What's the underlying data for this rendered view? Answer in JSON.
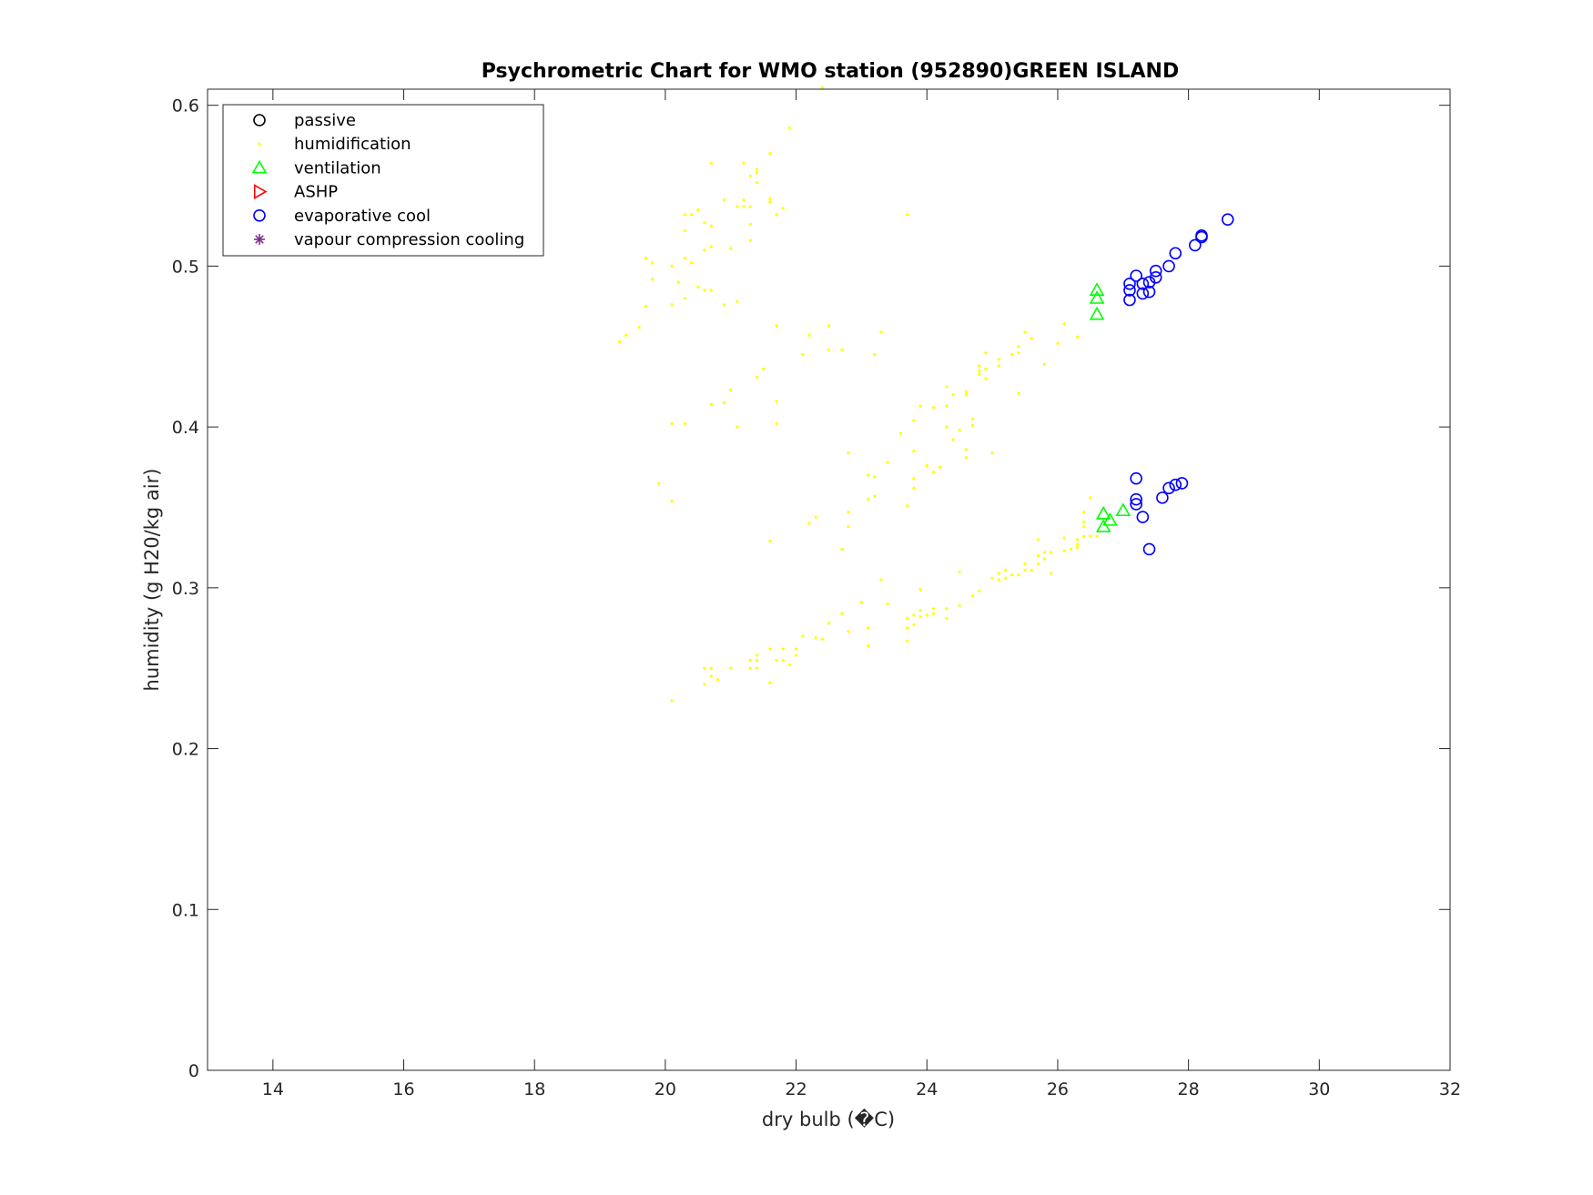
{
  "chart_data": {
    "type": "scatter",
    "title": "Psychrometric Chart for WMO station (952890)GREEN ISLAND",
    "xlabel": "dry bulb (�C)",
    "ylabel": "humidity (g H20/kg air)",
    "xlim": [
      13,
      32
    ],
    "ylim": [
      0,
      0.61
    ],
    "xticks": [
      14,
      16,
      18,
      20,
      22,
      24,
      26,
      28,
      30,
      32
    ],
    "yticks": [
      0,
      0.1,
      0.2,
      0.3,
      0.4,
      0.5,
      0.6
    ],
    "xtick_labels": [
      "14",
      "16",
      "18",
      "20",
      "22",
      "24",
      "26",
      "28",
      "30",
      "32"
    ],
    "ytick_labels": [
      "0",
      "0.1",
      "0.2",
      "0.3",
      "0.4",
      "0.5",
      "0.6"
    ],
    "grid": false,
    "legend_position": "top-left",
    "series": [
      {
        "name": "passive",
        "marker": "circle",
        "color": "#000000",
        "points": []
      },
      {
        "name": "humidification",
        "marker": "dot",
        "color": "#ffff00",
        "points": [
          [
            19.3,
            0.453
          ],
          [
            19.4,
            0.457
          ],
          [
            19.6,
            0.462
          ],
          [
            19.7,
            0.475
          ],
          [
            19.7,
            0.505
          ],
          [
            19.8,
            0.502
          ],
          [
            19.8,
            0.492
          ],
          [
            19.9,
            0.365
          ],
          [
            20.1,
            0.23
          ],
          [
            20.1,
            0.354
          ],
          [
            20.1,
            0.402
          ],
          [
            20.1,
            0.476
          ],
          [
            20.1,
            0.5
          ],
          [
            20.2,
            0.49
          ],
          [
            20.3,
            0.402
          ],
          [
            20.3,
            0.48
          ],
          [
            20.3,
            0.505
          ],
          [
            20.3,
            0.522
          ],
          [
            20.3,
            0.532
          ],
          [
            20.4,
            0.502
          ],
          [
            20.4,
            0.532
          ],
          [
            20.5,
            0.535
          ],
          [
            20.5,
            0.487
          ],
          [
            20.6,
            0.24
          ],
          [
            20.6,
            0.25
          ],
          [
            20.6,
            0.485
          ],
          [
            20.6,
            0.51
          ],
          [
            20.6,
            0.527
          ],
          [
            20.7,
            0.245
          ],
          [
            20.7,
            0.25
          ],
          [
            20.7,
            0.414
          ],
          [
            20.7,
            0.485
          ],
          [
            20.7,
            0.512
          ],
          [
            20.7,
            0.525
          ],
          [
            20.7,
            0.564
          ],
          [
            20.8,
            0.243
          ],
          [
            20.9,
            0.415
          ],
          [
            20.9,
            0.476
          ],
          [
            20.9,
            0.541
          ],
          [
            21.0,
            0.25
          ],
          [
            21.0,
            0.423
          ],
          [
            21.0,
            0.511
          ],
          [
            21.1,
            0.4
          ],
          [
            21.1,
            0.478
          ],
          [
            21.1,
            0.537
          ],
          [
            21.2,
            0.537
          ],
          [
            21.2,
            0.541
          ],
          [
            21.2,
            0.564
          ],
          [
            21.3,
            0.25
          ],
          [
            21.3,
            0.255
          ],
          [
            21.3,
            0.516
          ],
          [
            21.3,
            0.526
          ],
          [
            21.3,
            0.537
          ],
          [
            21.3,
            0.556
          ],
          [
            21.4,
            0.25
          ],
          [
            21.4,
            0.255
          ],
          [
            21.4,
            0.258
          ],
          [
            21.4,
            0.431
          ],
          [
            21.4,
            0.552
          ],
          [
            21.4,
            0.558
          ],
          [
            21.4,
            0.56
          ],
          [
            21.5,
            0.436
          ],
          [
            21.6,
            0.241
          ],
          [
            21.6,
            0.262
          ],
          [
            21.6,
            0.329
          ],
          [
            21.6,
            0.54
          ],
          [
            21.6,
            0.542
          ],
          [
            21.6,
            0.57
          ],
          [
            21.7,
            0.255
          ],
          [
            21.7,
            0.402
          ],
          [
            21.7,
            0.416
          ],
          [
            21.7,
            0.463
          ],
          [
            21.7,
            0.532
          ],
          [
            21.8,
            0.255
          ],
          [
            21.8,
            0.262
          ],
          [
            21.8,
            0.536
          ],
          [
            21.9,
            0.252
          ],
          [
            21.9,
            0.586
          ],
          [
            22.0,
            0.258
          ],
          [
            22.0,
            0.262
          ],
          [
            22.1,
            0.27
          ],
          [
            22.1,
            0.445
          ],
          [
            22.2,
            0.34
          ],
          [
            22.2,
            0.457
          ],
          [
            22.3,
            0.269
          ],
          [
            22.3,
            0.344
          ],
          [
            22.4,
            0.268
          ],
          [
            22.4,
            0.611
          ],
          [
            22.5,
            0.278
          ],
          [
            22.5,
            0.448
          ],
          [
            22.5,
            0.463
          ],
          [
            22.7,
            0.284
          ],
          [
            22.7,
            0.324
          ],
          [
            22.7,
            0.448
          ],
          [
            22.8,
            0.273
          ],
          [
            22.8,
            0.338
          ],
          [
            22.8,
            0.347
          ],
          [
            22.8,
            0.384
          ],
          [
            23.0,
            0.291
          ],
          [
            23.1,
            0.264
          ],
          [
            23.1,
            0.275
          ],
          [
            23.1,
            0.355
          ],
          [
            23.1,
            0.37
          ],
          [
            23.2,
            0.357
          ],
          [
            23.2,
            0.369
          ],
          [
            23.2,
            0.445
          ],
          [
            23.3,
            0.305
          ],
          [
            23.3,
            0.459
          ],
          [
            23.4,
            0.29
          ],
          [
            23.4,
            0.378
          ],
          [
            23.6,
            0.396
          ],
          [
            23.7,
            0.267
          ],
          [
            23.7,
            0.275
          ],
          [
            23.7,
            0.281
          ],
          [
            23.7,
            0.351
          ],
          [
            23.7,
            0.532
          ],
          [
            23.8,
            0.277
          ],
          [
            23.8,
            0.283
          ],
          [
            23.8,
            0.362
          ],
          [
            23.8,
            0.368
          ],
          [
            23.8,
            0.385
          ],
          [
            23.8,
            0.404
          ],
          [
            23.9,
            0.282
          ],
          [
            23.9,
            0.286
          ],
          [
            23.9,
            0.299
          ],
          [
            23.9,
            0.413
          ],
          [
            24.0,
            0.283
          ],
          [
            24.0,
            0.376
          ],
          [
            24.1,
            0.284
          ],
          [
            24.1,
            0.287
          ],
          [
            24.1,
            0.372
          ],
          [
            24.1,
            0.412
          ],
          [
            24.2,
            0.375
          ],
          [
            24.3,
            0.281
          ],
          [
            24.3,
            0.287
          ],
          [
            24.3,
            0.4
          ],
          [
            24.3,
            0.413
          ],
          [
            24.3,
            0.425
          ],
          [
            24.4,
            0.392
          ],
          [
            24.4,
            0.42
          ],
          [
            24.5,
            0.289
          ],
          [
            24.5,
            0.31
          ],
          [
            24.5,
            0.398
          ],
          [
            24.6,
            0.381
          ],
          [
            24.6,
            0.386
          ],
          [
            24.6,
            0.42
          ],
          [
            24.6,
            0.422
          ],
          [
            24.7,
            0.295
          ],
          [
            24.7,
            0.401
          ],
          [
            24.7,
            0.405
          ],
          [
            24.8,
            0.298
          ],
          [
            24.8,
            0.433
          ],
          [
            24.8,
            0.435
          ],
          [
            24.8,
            0.438
          ],
          [
            24.9,
            0.43
          ],
          [
            24.9,
            0.436
          ],
          [
            24.9,
            0.446
          ],
          [
            25.0,
            0.306
          ],
          [
            25.0,
            0.384
          ],
          [
            25.1,
            0.305
          ],
          [
            25.1,
            0.309
          ],
          [
            25.1,
            0.438
          ],
          [
            25.1,
            0.442
          ],
          [
            25.2,
            0.306
          ],
          [
            25.2,
            0.311
          ],
          [
            25.3,
            0.308
          ],
          [
            25.3,
            0.445
          ],
          [
            25.4,
            0.308
          ],
          [
            25.4,
            0.421
          ],
          [
            25.4,
            0.446
          ],
          [
            25.4,
            0.45
          ],
          [
            25.5,
            0.311
          ],
          [
            25.5,
            0.315
          ],
          [
            25.5,
            0.459
          ],
          [
            25.6,
            0.311
          ],
          [
            25.6,
            0.455
          ],
          [
            25.7,
            0.315
          ],
          [
            25.7,
            0.32
          ],
          [
            25.7,
            0.33
          ],
          [
            25.8,
            0.318
          ],
          [
            25.8,
            0.322
          ],
          [
            25.8,
            0.439
          ],
          [
            25.9,
            0.309
          ],
          [
            25.9,
            0.322
          ],
          [
            26.0,
            0.452
          ],
          [
            26.1,
            0.323
          ],
          [
            26.1,
            0.331
          ],
          [
            26.1,
            0.464
          ],
          [
            26.2,
            0.324
          ],
          [
            26.3,
            0.325
          ],
          [
            26.3,
            0.327
          ],
          [
            26.3,
            0.33
          ],
          [
            26.3,
            0.456
          ],
          [
            26.4,
            0.332
          ],
          [
            26.4,
            0.338
          ],
          [
            26.4,
            0.341
          ],
          [
            26.4,
            0.347
          ],
          [
            26.5,
            0.332
          ],
          [
            26.5,
            0.356
          ],
          [
            26.6,
            0.332
          ]
        ]
      },
      {
        "name": "ventilation",
        "marker": "triangle-up",
        "color": "#00ff00",
        "points": [
          [
            26.6,
            0.485
          ],
          [
            26.6,
            0.48
          ],
          [
            26.6,
            0.47
          ],
          [
            26.7,
            0.338
          ],
          [
            26.7,
            0.346
          ],
          [
            26.8,
            0.342
          ],
          [
            27.0,
            0.348
          ]
        ]
      },
      {
        "name": "ASHP",
        "marker": "triangle-right",
        "color": "#ff0000",
        "points": []
      },
      {
        "name": "evaporative cool",
        "marker": "circle",
        "color": "#0000ff",
        "points": [
          [
            27.1,
            0.479
          ],
          [
            27.1,
            0.485
          ],
          [
            27.1,
            0.489
          ],
          [
            27.2,
            0.494
          ],
          [
            27.3,
            0.483
          ],
          [
            27.3,
            0.489
          ],
          [
            27.4,
            0.484
          ],
          [
            27.4,
            0.49
          ],
          [
            27.5,
            0.493
          ],
          [
            27.5,
            0.497
          ],
          [
            27.7,
            0.5
          ],
          [
            27.8,
            0.508
          ],
          [
            28.1,
            0.513
          ],
          [
            28.2,
            0.518
          ],
          [
            28.2,
            0.519
          ],
          [
            28.6,
            0.529
          ],
          [
            27.2,
            0.352
          ],
          [
            27.2,
            0.355
          ],
          [
            27.2,
            0.368
          ],
          [
            27.3,
            0.344
          ],
          [
            27.4,
            0.324
          ],
          [
            27.6,
            0.356
          ],
          [
            27.7,
            0.362
          ],
          [
            27.8,
            0.364
          ],
          [
            27.9,
            0.365
          ]
        ]
      },
      {
        "name": "vapour compression cooling",
        "marker": "asterisk",
        "color": "#7e2f8e",
        "points": []
      }
    ]
  }
}
